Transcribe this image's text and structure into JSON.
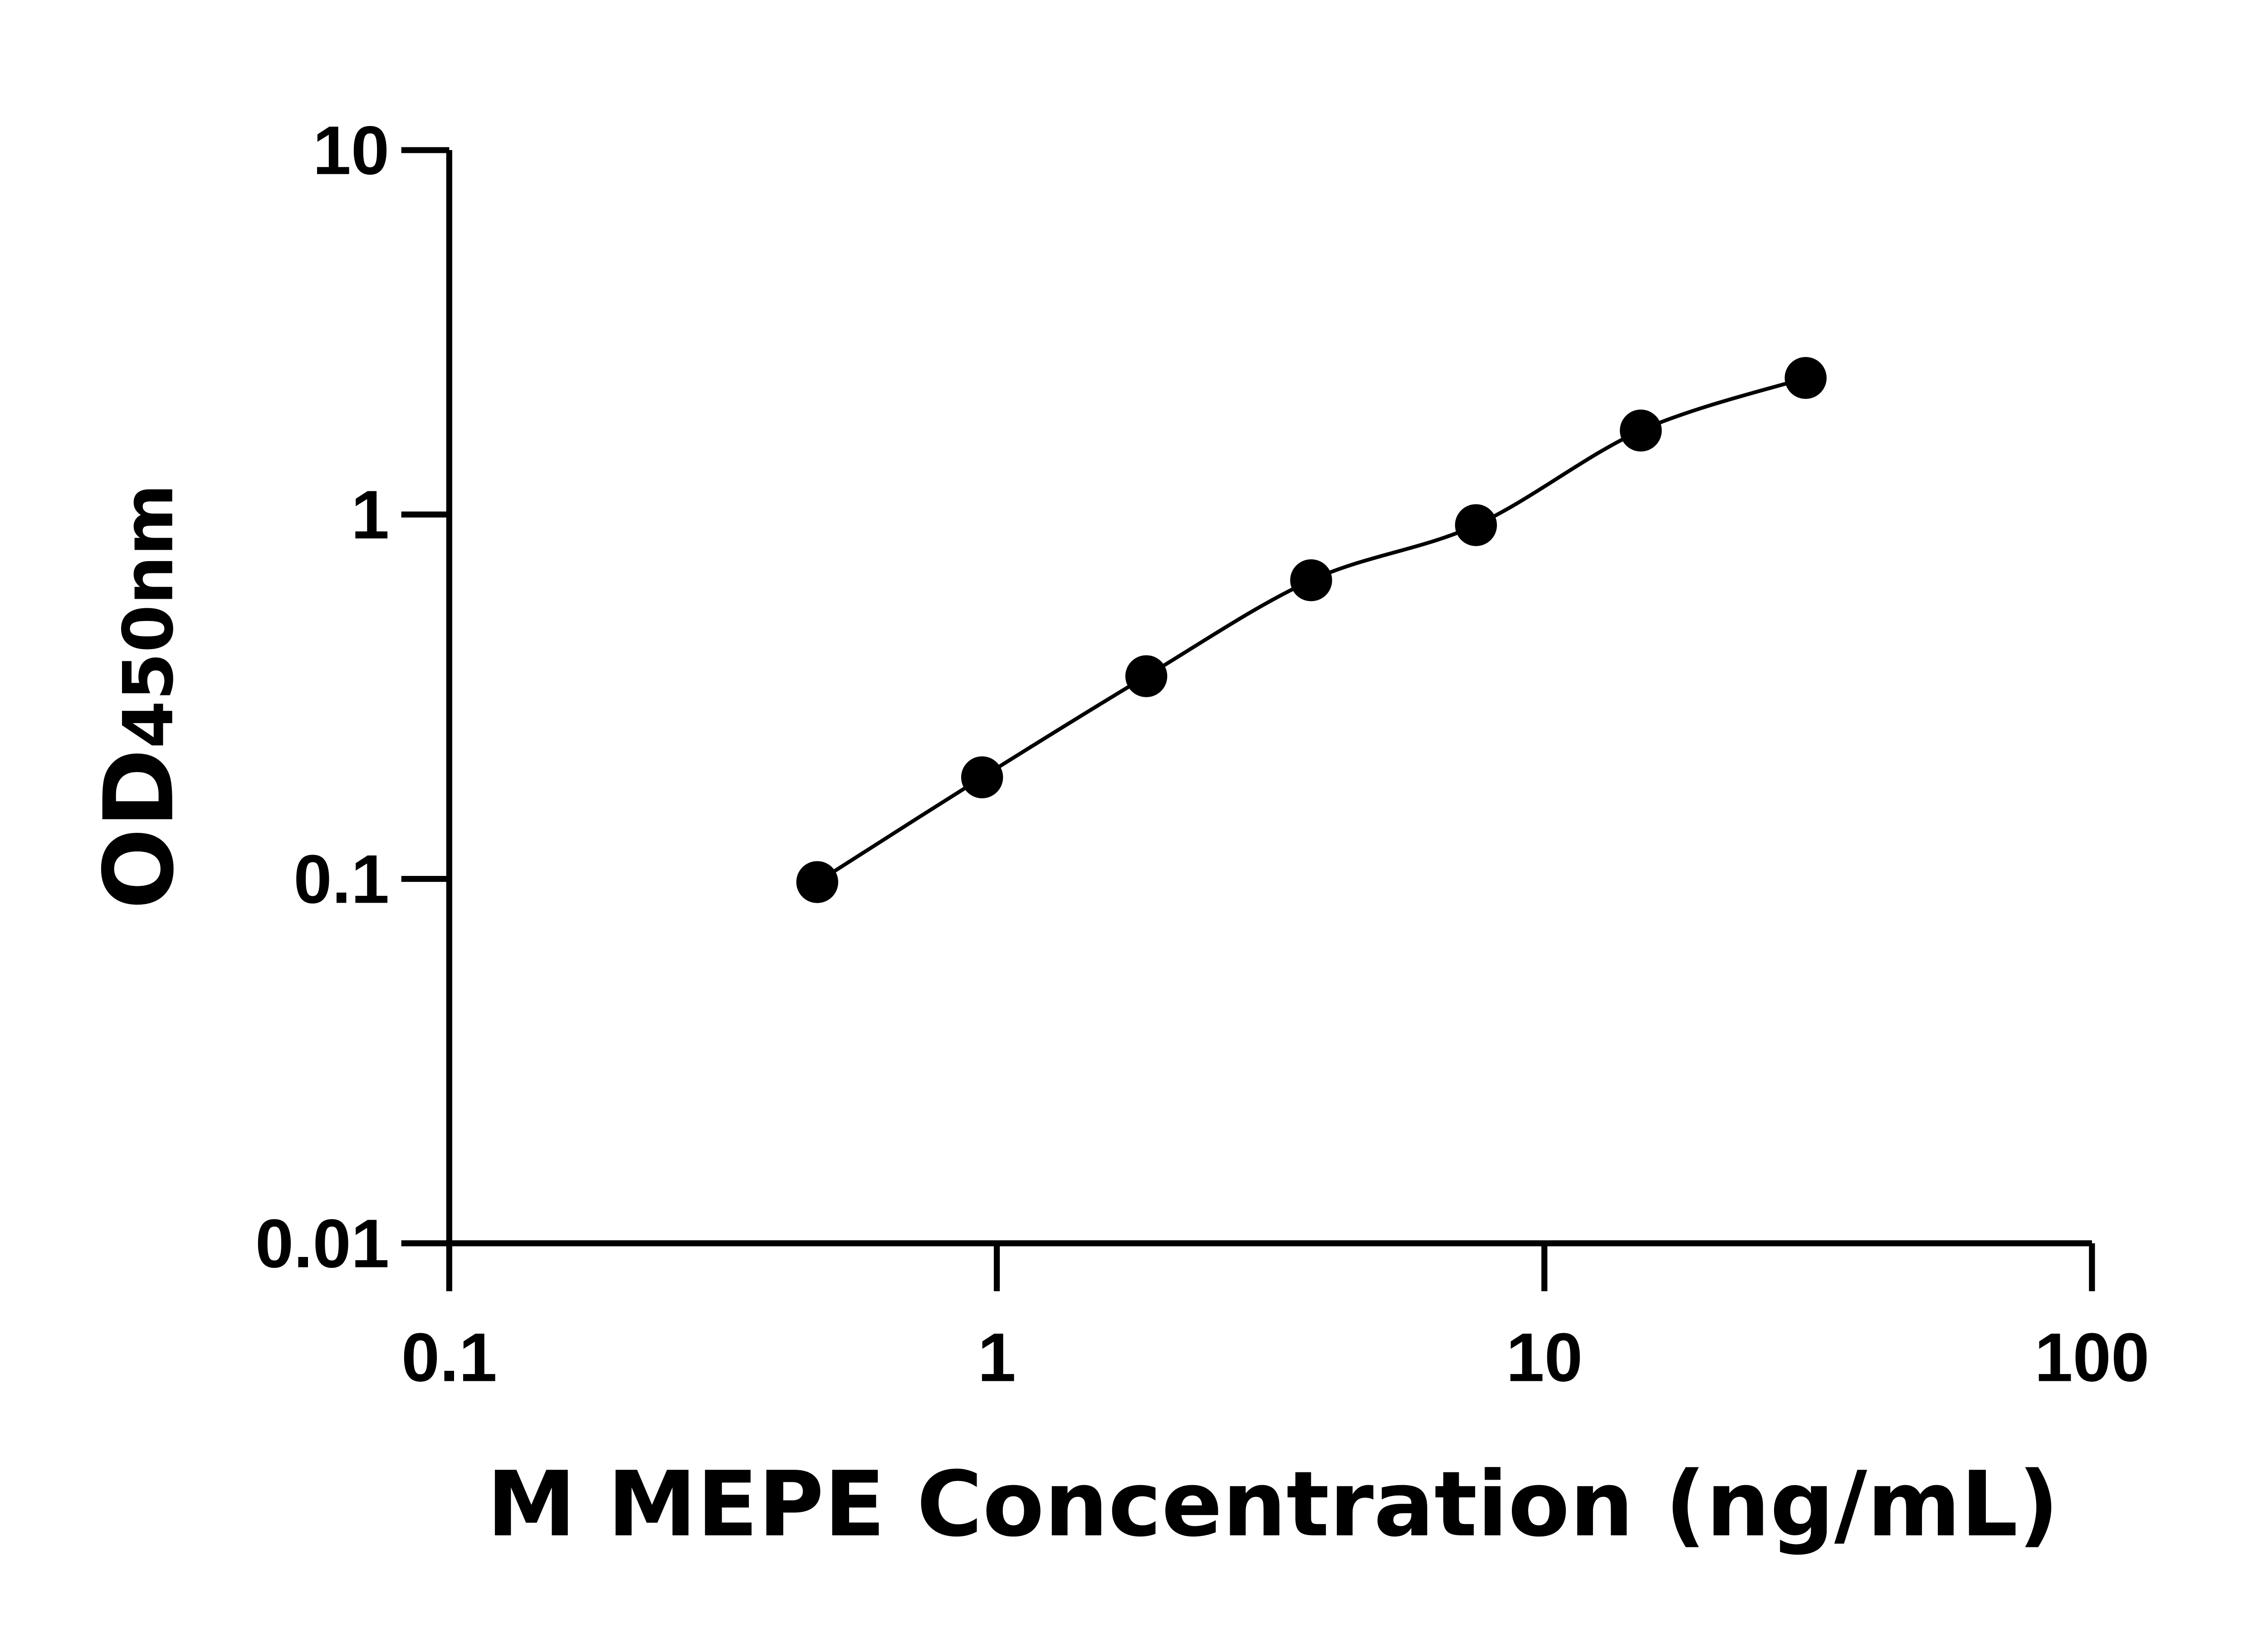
{
  "chart_data": {
    "type": "scatter",
    "title": "",
    "xlabel": "M MEPE Concentration (ng/mL)",
    "ylabel_main": "OD",
    "ylabel_sub": "450nm",
    "xscale": "log",
    "yscale": "log",
    "xlim": [
      0.1,
      100
    ],
    "ylim": [
      0.01,
      10
    ],
    "xticks": [
      "0.1",
      "1",
      "10",
      "100"
    ],
    "yticks": [
      "0.01",
      "0.1",
      "1",
      "10"
    ],
    "grid": false,
    "points": [
      {
        "x": 0.47,
        "y": 0.098
      },
      {
        "x": 0.94,
        "y": 0.19
      },
      {
        "x": 1.875,
        "y": 0.36
      },
      {
        "x": 3.75,
        "y": 0.66
      },
      {
        "x": 7.5,
        "y": 0.935
      },
      {
        "x": 15,
        "y": 1.7
      },
      {
        "x": 30,
        "y": 2.37
      }
    ],
    "fit_curve": true,
    "colors": {
      "marker": "#000000",
      "line": "#000000"
    }
  }
}
